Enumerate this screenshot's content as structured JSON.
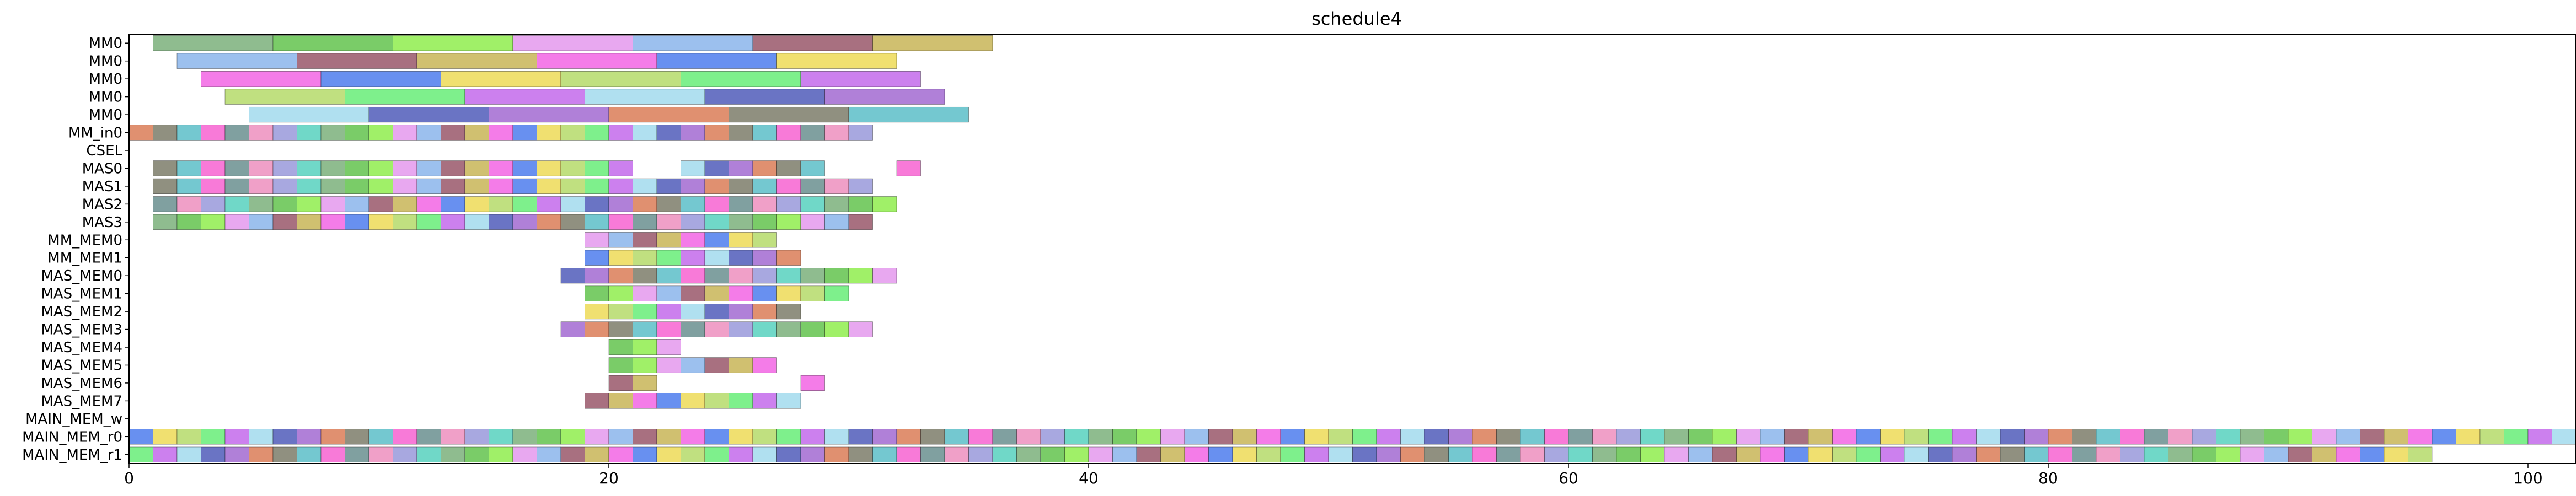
{
  "chart_data": {
    "type": "gantt",
    "title": "schedule4",
    "xlabel": "",
    "ylabel": "",
    "xlim": [
      0,
      102
    ],
    "xticks": [
      0,
      20,
      40,
      60,
      80,
      100
    ],
    "xtick_labels": [
      "0",
      "20",
      "40",
      "60",
      "80",
      "100"
    ],
    "rows": [
      "MM0",
      "MM0",
      "MM0",
      "MM0",
      "MM0",
      "MM_in0",
      "CSEL",
      "MAS0",
      "MAS1",
      "MAS2",
      "MAS3",
      "MM_MEM0",
      "MM_MEM1",
      "MAS_MEM0",
      "MAS_MEM1",
      "MAS_MEM2",
      "MAS_MEM3",
      "MAS_MEM4",
      "MAS_MEM5",
      "MAS_MEM6",
      "MAS_MEM7",
      "MAIN_MEM_w",
      "MAIN_MEM_r0",
      "MAIN_MEM_r1"
    ],
    "palette": [
      "#8fbc8f",
      "#f47ce8",
      "#6a74c4",
      "#f0a0c8",
      "#9cc0ee",
      "#7ef08c",
      "#74c8d0",
      "#7acc68",
      "#6890f0",
      "#b080d8",
      "#a8a8e0",
      "#a87080",
      "#cc80ee",
      "#f87ad8",
      "#a0f068",
      "#f0e070",
      "#e09070",
      "#70d8c8",
      "#d0c070",
      "#b0e0f0",
      "#80a0a0",
      "#e8a8f0",
      "#c0e080",
      "#909080"
    ],
    "rows_data": [
      [
        {
          "s": 1,
          "d": 5
        },
        {
          "s": 6,
          "d": 5
        },
        {
          "s": 11,
          "d": 5
        },
        {
          "s": 16,
          "d": 5
        },
        {
          "s": 21,
          "d": 5
        },
        {
          "s": 26,
          "d": 5
        },
        {
          "s": 31,
          "d": 5
        }
      ],
      [
        {
          "s": 2,
          "d": 5
        },
        {
          "s": 7,
          "d": 5
        },
        {
          "s": 12,
          "d": 5
        },
        {
          "s": 17,
          "d": 5
        },
        {
          "s": 22,
          "d": 5
        },
        {
          "s": 27,
          "d": 5
        }
      ],
      [
        {
          "s": 3,
          "d": 5
        },
        {
          "s": 8,
          "d": 5
        },
        {
          "s": 13,
          "d": 5
        },
        {
          "s": 18,
          "d": 5
        },
        {
          "s": 23,
          "d": 5
        },
        {
          "s": 28,
          "d": 5
        }
      ],
      [
        {
          "s": 4,
          "d": 5
        },
        {
          "s": 9,
          "d": 5
        },
        {
          "s": 14,
          "d": 5
        },
        {
          "s": 19,
          "d": 5
        },
        {
          "s": 24,
          "d": 5
        },
        {
          "s": 29,
          "d": 5
        }
      ],
      [
        {
          "s": 5,
          "d": 5
        },
        {
          "s": 10,
          "d": 5
        },
        {
          "s": 15,
          "d": 5
        },
        {
          "s": 20,
          "d": 5
        },
        {
          "s": 25,
          "d": 5
        },
        {
          "s": 30,
          "d": 5
        }
      ],
      [
        {
          "s": 0,
          "n": 31
        }
      ],
      [],
      [
        {
          "s": 1,
          "n": 20
        },
        {
          "s": 23,
          "n": 6
        },
        {
          "s": 32,
          "n": 1
        }
      ],
      [
        {
          "s": 1,
          "n": 30
        }
      ],
      [
        {
          "s": 1,
          "n": 31
        }
      ],
      [
        {
          "s": 1,
          "n": 30
        }
      ],
      [
        {
          "s": 19,
          "n": 8
        }
      ],
      [
        {
          "s": 19,
          "n": 9
        }
      ],
      [
        {
          "s": 18,
          "n": 14
        }
      ],
      [
        {
          "s": 19,
          "n": 11
        }
      ],
      [
        {
          "s": 19,
          "n": 9
        }
      ],
      [
        {
          "s": 18,
          "n": 13
        }
      ],
      [
        {
          "s": 20,
          "n": 3
        }
      ],
      [
        {
          "s": 20,
          "n": 7
        }
      ],
      [
        {
          "s": 20,
          "n": 2
        },
        {
          "s": 28,
          "n": 1
        }
      ],
      [
        {
          "s": 19,
          "n": 9
        }
      ],
      [],
      [
        {
          "s": 0,
          "n": 102
        }
      ],
      [
        {
          "s": 0,
          "n": 96
        }
      ]
    ]
  }
}
